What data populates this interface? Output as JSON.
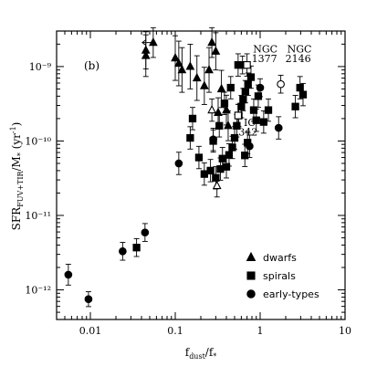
{
  "chart_data": {
    "type": "scatter",
    "panel_label": "(b)",
    "xlabel": "f_dust/f_*",
    "ylabel": "SFR_FUV+TIR/M_* (yr^-1)",
    "x_scale": "log",
    "y_scale": "log",
    "xlim": [
      0.004,
      10
    ],
    "ylim": [
      4e-13,
      3e-09
    ],
    "x_ticks": [
      {
        "value": 0.01,
        "label": "0.01"
      },
      {
        "value": 0.1,
        "label": "0.1"
      },
      {
        "value": 1,
        "label": "1"
      },
      {
        "value": 10,
        "label": "10"
      }
    ],
    "y_ticks": [
      {
        "value": 1e-12,
        "label": "10⁻¹²"
      },
      {
        "value": 1e-11,
        "label": "10⁻¹¹"
      },
      {
        "value": 1e-10,
        "label": "10⁻¹⁰"
      },
      {
        "value": 1e-09,
        "label": "10⁻⁹"
      }
    ],
    "legend": [
      {
        "marker": "triangle",
        "label": "dwarfs"
      },
      {
        "marker": "square",
        "label": "spirals"
      },
      {
        "marker": "circle",
        "label": "early-types"
      }
    ],
    "annotations": [
      {
        "text": "NGC",
        "x": 1.15,
        "y": 1.55e-09
      },
      {
        "text": "1377",
        "x": 1.12,
        "y": 1.15e-09
      },
      {
        "text": "NGC",
        "x": 2.9,
        "y": 1.55e-09
      },
      {
        "text": "2146",
        "x": 2.8,
        "y": 1.15e-09
      },
      {
        "text": "IC",
        "x": 0.75,
        "y": 1.6e-10
      },
      {
        "text": "342",
        "x": 0.72,
        "y": 1.18e-10
      }
    ],
    "series": [
      {
        "name": "dwarfs",
        "marker": "triangle",
        "points": [
          {
            "x": 0.055,
            "y": 2.1e-09,
            "yerr": 0.2
          },
          {
            "x": 0.045,
            "y": 1.4e-09,
            "yerr": 0.28
          },
          {
            "x": 0.045,
            "y": 1.65e-09,
            "yerr": 0.25
          },
          {
            "x": 0.1,
            "y": 1.3e-09,
            "yerr": 0.3
          },
          {
            "x": 0.11,
            "y": 1.1e-09,
            "yerr": 0.3
          },
          {
            "x": 0.12,
            "y": 9e-10,
            "yerr": 0.3
          },
          {
            "x": 0.15,
            "y": 1e-09,
            "yerr": 0.3
          },
          {
            "x": 0.18,
            "y": 7e-10,
            "yerr": 0.3
          },
          {
            "x": 0.22,
            "y": 5.5e-10,
            "yerr": 0.25
          },
          {
            "x": 0.25,
            "y": 9e-10,
            "yerr": 0.3
          },
          {
            "x": 0.27,
            "y": 2.1e-09,
            "yerr": 0.2
          },
          {
            "x": 0.3,
            "y": 1.6e-09,
            "yerr": 0.25
          },
          {
            "x": 0.35,
            "y": 5e-10,
            "yerr": 0.25
          },
          {
            "x": 0.4,
            "y": 2.6e-10,
            "yerr": 0.2
          },
          {
            "x": 0.42,
            "y": 1.6e-10,
            "yerr": 0.2
          },
          {
            "x": 0.32,
            "y": 2.4e-10,
            "yerr": 0.2
          }
        ]
      },
      {
        "name": "spirals",
        "marker": "square",
        "points": [
          {
            "x": 0.035,
            "y": 3.7e-12,
            "yerr": 0.12
          },
          {
            "x": 0.15,
            "y": 1.1e-10,
            "yerr": 0.15
          },
          {
            "x": 0.16,
            "y": 2e-10,
            "yerr": 0.15
          },
          {
            "x": 0.19,
            "y": 6e-11,
            "yerr": 0.15
          },
          {
            "x": 0.22,
            "y": 3.6e-11,
            "yerr": 0.15
          },
          {
            "x": 0.26,
            "y": 4e-11,
            "yerr": 0.15
          },
          {
            "x": 0.3,
            "y": 3.2e-11,
            "yerr": 0.15
          },
          {
            "x": 0.34,
            "y": 4.2e-11,
            "yerr": 0.15
          },
          {
            "x": 0.36,
            "y": 5.8e-11,
            "yerr": 0.15
          },
          {
            "x": 0.4,
            "y": 4.5e-11,
            "yerr": 0.15
          },
          {
            "x": 0.43,
            "y": 6.5e-11,
            "yerr": 0.15
          },
          {
            "x": 0.47,
            "y": 8.2e-11,
            "yerr": 0.15
          },
          {
            "x": 0.5,
            "y": 1.1e-10,
            "yerr": 0.15
          },
          {
            "x": 0.53,
            "y": 1.6e-10,
            "yerr": 0.15
          },
          {
            "x": 0.56,
            "y": 2.2e-10,
            "yerr": 0.15
          },
          {
            "x": 0.6,
            "y": 2.9e-10,
            "yerr": 0.15
          },
          {
            "x": 0.63,
            "y": 3.6e-10,
            "yerr": 0.15
          },
          {
            "x": 0.67,
            "y": 4.6e-10,
            "yerr": 0.15
          },
          {
            "x": 0.72,
            "y": 5.8e-10,
            "yerr": 0.15
          },
          {
            "x": 0.78,
            "y": 7.2e-10,
            "yerr": 0.15
          },
          {
            "x": 0.84,
            "y": 2.6e-10,
            "yerr": 0.15
          },
          {
            "x": 0.9,
            "y": 1.9e-10,
            "yerr": 0.15
          },
          {
            "x": 0.95,
            "y": 4e-10,
            "yerr": 0.15
          },
          {
            "x": 0.55,
            "y": 1.05e-09,
            "yerr": 0.15
          },
          {
            "x": 0.62,
            "y": 1.05e-09,
            "yerr": 0.12
          },
          {
            "x": 0.45,
            "y": 5.2e-10,
            "yerr": 0.15
          },
          {
            "x": 0.38,
            "y": 3.2e-10,
            "yerr": 0.15
          },
          {
            "x": 0.33,
            "y": 1.6e-10,
            "yerr": 0.15
          },
          {
            "x": 0.28,
            "y": 1e-10,
            "yerr": 0.15
          },
          {
            "x": 1.25,
            "y": 2.6e-10,
            "yerr": 0.15
          },
          {
            "x": 1.1,
            "y": 1.8e-10,
            "yerr": 0.15
          },
          {
            "x": 2.6,
            "y": 2.9e-10,
            "yerr": 0.15
          },
          {
            "x": 2.95,
            "y": 5.2e-10,
            "yerr": 0.15
          },
          {
            "x": 3.2,
            "y": 4.2e-10,
            "yerr": 0.15
          },
          {
            "x": 0.66,
            "y": 6.4e-11,
            "yerr": 0.15
          },
          {
            "x": 0.71,
            "y": 9.5e-11,
            "yerr": 0.15
          }
        ]
      },
      {
        "name": "early-types",
        "marker": "circle",
        "points": [
          {
            "x": 0.0055,
            "y": 1.6e-12,
            "yerr": 0.14
          },
          {
            "x": 0.0095,
            "y": 7.5e-13,
            "yerr": 0.1
          },
          {
            "x": 0.024,
            "y": 3.3e-12,
            "yerr": 0.12
          },
          {
            "x": 0.044,
            "y": 5.9e-12,
            "yerr": 0.12
          },
          {
            "x": 0.11,
            "y": 5e-11,
            "yerr": 0.15
          },
          {
            "x": 0.28,
            "y": 1.05e-10,
            "yerr": 0.15
          },
          {
            "x": 0.75,
            "y": 8.5e-11,
            "yerr": 0.15
          },
          {
            "x": 1.0,
            "y": 5.2e-10,
            "yerr": 0.12
          },
          {
            "x": 1.65,
            "y": 1.5e-10,
            "yerr": 0.15
          }
        ]
      },
      {
        "name": "",
        "marker": "open-triangle",
        "points": [
          {
            "x": 0.27,
            "y": 2.6e-10,
            "yerr": 0.15
          },
          {
            "x": 0.31,
            "y": 2.5e-11,
            "yerr": 0.15
          }
        ]
      },
      {
        "name": "",
        "marker": "open-square",
        "points": [
          {
            "x": 0.7,
            "y": 1.05e-09,
            "yerr": 0.15
          },
          {
            "x": 0.55,
            "y": 2.2e-10,
            "yerr": 0.15
          }
        ]
      },
      {
        "name": "",
        "marker": "open-circle",
        "points": [
          {
            "x": 1.75,
            "y": 5.8e-10,
            "yerr": 0.12
          }
        ]
      }
    ],
    "limits": [
      {
        "x": 0.055,
        "y": 2.1e-09,
        "direction": "left"
      }
    ]
  }
}
